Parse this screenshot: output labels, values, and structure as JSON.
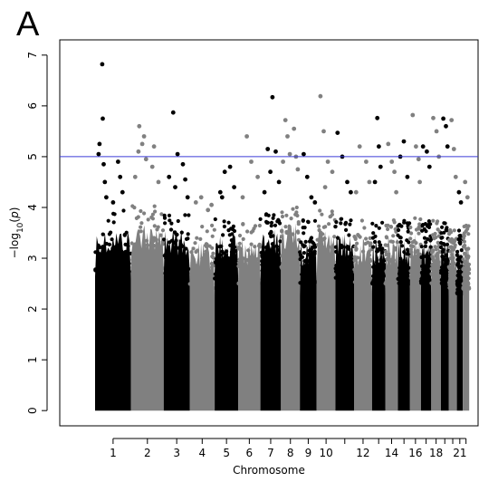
{
  "panel_label": "A",
  "chart_data": {
    "type": "scatter",
    "subtype": "manhattan",
    "title": "",
    "xlabel": "Chromosome",
    "ylabel_parts": [
      "−log",
      "10",
      "(",
      "p",
      ")"
    ],
    "ylim": [
      0,
      7
    ],
    "yticks": [
      "0",
      "1",
      "2",
      "3",
      "4",
      "5",
      "6",
      "7"
    ],
    "xticks": [
      "1",
      "2",
      "3",
      "4",
      "5",
      "6",
      "7",
      "8",
      "9",
      "10",
      "12",
      "14",
      "16",
      "18",
      "21"
    ],
    "threshold": {
      "value": 5,
      "color": "#3b3bd6"
    },
    "colors": {
      "odd": "#000000",
      "even": "#808080"
    },
    "chromosomes": [
      {
        "chr": "1",
        "x_range": [
          0.0,
          12.2
        ],
        "bulk_top": 3.6,
        "points": [
          [
            2.4,
            6.82
          ],
          [
            2.6,
            5.75
          ],
          [
            1.5,
            5.25
          ],
          [
            1.2,
            5.05
          ],
          [
            2.9,
            4.85
          ],
          [
            3.3,
            4.5
          ],
          [
            7.8,
            4.9
          ],
          [
            8.5,
            4.6
          ],
          [
            3.8,
            4.2
          ],
          [
            9.3,
            4.3
          ],
          [
            6.1,
            4.1
          ]
        ]
      },
      {
        "chr": "2",
        "x_range": [
          12.2,
          23.3
        ],
        "bulk_top": 3.7,
        "points": [
          [
            15.0,
            5.6
          ],
          [
            16.6,
            5.4
          ],
          [
            16.0,
            5.25
          ],
          [
            14.7,
            5.1
          ],
          [
            17.3,
            4.95
          ],
          [
            20.0,
            5.2
          ],
          [
            19.4,
            4.8
          ],
          [
            21.5,
            4.5
          ],
          [
            13.6,
            4.6
          ]
        ]
      },
      {
        "chr": "3",
        "x_range": [
          23.3,
          32.1
        ],
        "bulk_top": 3.6,
        "points": [
          [
            26.5,
            5.87
          ],
          [
            28.0,
            5.05
          ],
          [
            25.1,
            4.6
          ],
          [
            29.8,
            4.85
          ],
          [
            30.6,
            4.55
          ],
          [
            27.2,
            4.4
          ],
          [
            31.4,
            4.2
          ]
        ]
      },
      {
        "chr": "4",
        "x_range": [
          32.1,
          40.6
        ],
        "bulk_top": 3.3,
        "points": [
          [
            34.2,
            4.1
          ],
          [
            36.0,
            4.2
          ],
          [
            38.3,
            3.95
          ],
          [
            39.5,
            4.05
          ]
        ]
      },
      {
        "chr": "5",
        "x_range": [
          40.6,
          48.6
        ],
        "bulk_top": 3.5,
        "points": [
          [
            42.5,
            4.3
          ],
          [
            44.0,
            4.7
          ],
          [
            45.8,
            4.8
          ],
          [
            47.2,
            4.4
          ],
          [
            43.1,
            4.2
          ]
        ]
      },
      {
        "chr": "6",
        "x_range": [
          48.6,
          56.1
        ],
        "bulk_top": 3.4,
        "points": [
          [
            51.5,
            5.4
          ],
          [
            53.0,
            4.9
          ],
          [
            55.2,
            4.6
          ],
          [
            50.1,
            4.2
          ]
        ]
      },
      {
        "chr": "7",
        "x_range": [
          56.1,
          63.1
        ],
        "bulk_top": 3.6,
        "points": [
          [
            60.2,
            6.17
          ],
          [
            61.3,
            5.1
          ],
          [
            58.6,
            5.15
          ],
          [
            59.5,
            4.7
          ],
          [
            62.4,
            4.5
          ],
          [
            57.5,
            4.3
          ]
        ]
      },
      {
        "chr": "8",
        "x_range": [
          63.1,
          69.5
        ],
        "bulk_top": 3.7,
        "points": [
          [
            64.6,
            5.72
          ],
          [
            65.3,
            5.4
          ],
          [
            66.1,
            5.05
          ],
          [
            67.5,
            5.55
          ],
          [
            68.2,
            5.0
          ],
          [
            63.8,
            4.9
          ],
          [
            68.8,
            4.75
          ]
        ]
      },
      {
        "chr": "9",
        "x_range": [
          69.5,
          75.2
        ],
        "bulk_top": 3.4,
        "points": [
          [
            70.8,
            5.05
          ],
          [
            72.0,
            4.6
          ],
          [
            73.4,
            4.2
          ],
          [
            74.6,
            4.1
          ]
        ]
      },
      {
        "chr": "10",
        "x_range": [
          75.2,
          81.6
        ],
        "bulk_top": 3.6,
        "points": [
          [
            76.5,
            6.19
          ],
          [
            77.6,
            5.5
          ],
          [
            79.0,
            4.9
          ],
          [
            80.5,
            4.7
          ],
          [
            78.1,
            4.4
          ]
        ]
      },
      {
        "chr": "11",
        "x_range": [
          81.6,
          87.9
        ],
        "bulk_top": 3.5,
        "points": [
          [
            82.3,
            5.47
          ],
          [
            83.9,
            5.0
          ],
          [
            85.6,
            4.5
          ],
          [
            86.8,
            4.3
          ]
        ]
      },
      {
        "chr": "12",
        "x_range": [
          87.9,
          94.0
        ],
        "bulk_top": 3.4,
        "points": [
          [
            89.8,
            5.2
          ],
          [
            92.0,
            4.9
          ],
          [
            93.1,
            4.5
          ],
          [
            88.6,
            4.3
          ]
        ]
      },
      {
        "chr": "13",
        "x_range": [
          94.0,
          98.5
        ],
        "bulk_top": 3.4,
        "points": [
          [
            95.8,
            5.76
          ],
          [
            96.3,
            5.2
          ],
          [
            96.9,
            4.8
          ],
          [
            95.0,
            4.5
          ]
        ]
      },
      {
        "chr": "14",
        "x_range": [
          98.5,
          102.8
        ],
        "bulk_top": 3.4,
        "points": [
          [
            99.5,
            5.25
          ],
          [
            100.7,
            4.9
          ],
          [
            101.6,
            4.7
          ],
          [
            102.2,
            4.3
          ]
        ]
      },
      {
        "chr": "15",
        "x_range": [
          102.8,
          106.9
        ],
        "bulk_top": 3.4,
        "points": [
          [
            103.6,
            5.0
          ],
          [
            104.8,
            5.3
          ],
          [
            106.0,
            4.6
          ]
        ]
      },
      {
        "chr": "16",
        "x_range": [
          106.9,
          110.6
        ],
        "bulk_top": 3.5,
        "points": [
          [
            107.8,
            5.82
          ],
          [
            108.9,
            5.2
          ],
          [
            109.8,
            4.95
          ],
          [
            110.2,
            4.5
          ]
        ]
      },
      {
        "chr": "17",
        "x_range": [
          110.6,
          114.1
        ],
        "bulk_top": 3.4,
        "points": [
          [
            111.3,
            5.2
          ],
          [
            112.6,
            5.1
          ],
          [
            113.5,
            4.8
          ]
        ]
      },
      {
        "chr": "18",
        "x_range": [
          114.1,
          117.4
        ],
        "bulk_top": 3.4,
        "points": [
          [
            114.8,
            5.76
          ],
          [
            115.9,
            5.5
          ],
          [
            116.7,
            5.0
          ]
        ]
      },
      {
        "chr": "19",
        "x_range": [
          117.4,
          120.0
        ],
        "bulk_top": 3.4,
        "points": [
          [
            118.2,
            5.75
          ],
          [
            119.1,
            5.6
          ],
          [
            119.6,
            5.2
          ]
        ]
      },
      {
        "chr": "20",
        "x_range": [
          120.0,
          122.8
        ],
        "bulk_top": 3.3,
        "points": [
          [
            121.0,
            5.72
          ],
          [
            121.8,
            5.15
          ],
          [
            122.4,
            4.6
          ]
        ]
      },
      {
        "chr": "21",
        "x_range": [
          122.8,
          124.8
        ],
        "bulk_top": 3.2,
        "points": [
          [
            123.5,
            4.3
          ],
          [
            124.2,
            4.1
          ]
        ]
      },
      {
        "chr": "22",
        "x_range": [
          124.8,
          127.0
        ],
        "bulk_top": 3.3,
        "points": [
          [
            125.6,
            4.5
          ],
          [
            126.4,
            4.2
          ]
        ]
      }
    ]
  }
}
